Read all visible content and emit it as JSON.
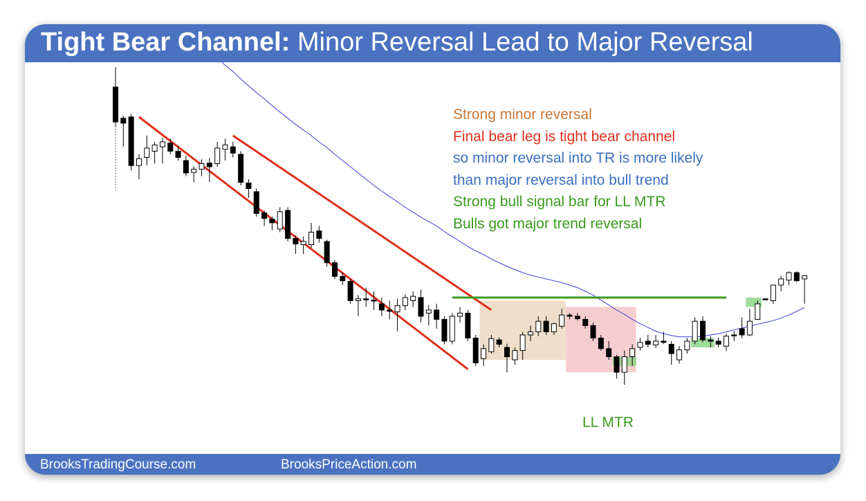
{
  "header": {
    "title_bold": "Tight Bear Channel:",
    "title_rest": " Minor Reversal Lead to Major Reversal",
    "color": "#4a72c0"
  },
  "footer": {
    "left": "BrooksTradingCourse.com",
    "right": "BrooksPriceAction.com"
  },
  "chart_data": {
    "type": "candlestick",
    "title": "",
    "xlabel": "",
    "ylabel": "",
    "grid": false,
    "candles": [
      {
        "o": 508,
        "h": 540,
        "l": 445,
        "c": 452
      },
      {
        "o": 458,
        "h": 462,
        "l": 412,
        "c": 450
      },
      {
        "o": 460,
        "h": 465,
        "l": 374,
        "c": 382
      },
      {
        "o": 382,
        "h": 400,
        "l": 360,
        "c": 393
      },
      {
        "o": 395,
        "h": 430,
        "l": 382,
        "c": 410
      },
      {
        "o": 405,
        "h": 420,
        "l": 385,
        "c": 415
      },
      {
        "o": 412,
        "h": 427,
        "l": 385,
        "c": 420
      },
      {
        "o": 418,
        "h": 425,
        "l": 400,
        "c": 405
      },
      {
        "o": 405,
        "h": 414,
        "l": 390,
        "c": 395
      },
      {
        "o": 390,
        "h": 398,
        "l": 365,
        "c": 370
      },
      {
        "o": 371,
        "h": 380,
        "l": 355,
        "c": 376
      },
      {
        "o": 376,
        "h": 392,
        "l": 365,
        "c": 385
      },
      {
        "o": 386,
        "h": 394,
        "l": 355,
        "c": 380
      },
      {
        "o": 385,
        "h": 420,
        "l": 380,
        "c": 410
      },
      {
        "o": 408,
        "h": 425,
        "l": 390,
        "c": 415
      },
      {
        "o": 412,
        "h": 420,
        "l": 395,
        "c": 402
      },
      {
        "o": 400,
        "h": 405,
        "l": 350,
        "c": 355
      },
      {
        "o": 354,
        "h": 360,
        "l": 330,
        "c": 345
      },
      {
        "o": 340,
        "h": 345,
        "l": 300,
        "c": 305
      },
      {
        "o": 306,
        "h": 310,
        "l": 285,
        "c": 297
      },
      {
        "o": 296,
        "h": 300,
        "l": 278,
        "c": 290
      },
      {
        "o": 280,
        "h": 315,
        "l": 275,
        "c": 308
      },
      {
        "o": 310,
        "h": 315,
        "l": 260,
        "c": 265
      },
      {
        "o": 265,
        "h": 270,
        "l": 240,
        "c": 256
      },
      {
        "o": 255,
        "h": 268,
        "l": 240,
        "c": 260
      },
      {
        "o": 255,
        "h": 290,
        "l": 250,
        "c": 275
      },
      {
        "o": 277,
        "h": 285,
        "l": 258,
        "c": 265
      },
      {
        "o": 260,
        "h": 263,
        "l": 220,
        "c": 226
      },
      {
        "o": 226,
        "h": 230,
        "l": 200,
        "c": 204
      },
      {
        "o": 204,
        "h": 210,
        "l": 190,
        "c": 197
      },
      {
        "o": 196,
        "h": 200,
        "l": 160,
        "c": 165
      },
      {
        "o": 165,
        "h": 174,
        "l": 140,
        "c": 168
      },
      {
        "o": 168,
        "h": 186,
        "l": 155,
        "c": 168
      },
      {
        "o": 166,
        "h": 180,
        "l": 150,
        "c": 165
      },
      {
        "o": 160,
        "h": 170,
        "l": 140,
        "c": 150
      },
      {
        "o": 150,
        "h": 165,
        "l": 135,
        "c": 148
      },
      {
        "o": 147,
        "h": 168,
        "l": 116,
        "c": 157
      },
      {
        "o": 157,
        "h": 175,
        "l": 150,
        "c": 170
      },
      {
        "o": 165,
        "h": 180,
        "l": 155,
        "c": 172
      },
      {
        "o": 170,
        "h": 183,
        "l": 130,
        "c": 140
      },
      {
        "o": 145,
        "h": 158,
        "l": 125,
        "c": 150
      },
      {
        "o": 150,
        "h": 160,
        "l": 120,
        "c": 135
      },
      {
        "o": 135,
        "h": 140,
        "l": 95,
        "c": 100
      },
      {
        "o": 100,
        "h": 145,
        "l": 95,
        "c": 140
      },
      {
        "o": 140,
        "h": 155,
        "l": 130,
        "c": 145
      },
      {
        "o": 145,
        "h": 150,
        "l": 100,
        "c": 105
      },
      {
        "o": 105,
        "h": 110,
        "l": 60,
        "c": 65
      },
      {
        "o": 72,
        "h": 95,
        "l": 60,
        "c": 88
      },
      {
        "o": 83,
        "h": 110,
        "l": 80,
        "c": 104
      },
      {
        "o": 102,
        "h": 106,
        "l": 90,
        "c": 95
      },
      {
        "o": 90,
        "h": 96,
        "l": 50,
        "c": 75
      },
      {
        "o": 70,
        "h": 90,
        "l": 62,
        "c": 85
      },
      {
        "o": 85,
        "h": 115,
        "l": 70,
        "c": 110
      },
      {
        "o": 110,
        "h": 125,
        "l": 100,
        "c": 115
      },
      {
        "o": 115,
        "h": 140,
        "l": 108,
        "c": 132
      },
      {
        "o": 132,
        "h": 140,
        "l": 110,
        "c": 115
      },
      {
        "o": 115,
        "h": 130,
        "l": 110,
        "c": 128
      },
      {
        "o": 124,
        "h": 152,
        "l": 120,
        "c": 142
      },
      {
        "o": 142,
        "h": 145,
        "l": 135,
        "c": 140
      },
      {
        "o": 140,
        "h": 145,
        "l": 133,
        "c": 136
      },
      {
        "o": 135,
        "h": 140,
        "l": 120,
        "c": 125
      },
      {
        "o": 125,
        "h": 130,
        "l": 100,
        "c": 105
      },
      {
        "o": 105,
        "h": 110,
        "l": 85,
        "c": 88
      },
      {
        "o": 88,
        "h": 100,
        "l": 70,
        "c": 75
      },
      {
        "o": 75,
        "h": 78,
        "l": 40,
        "c": 50
      },
      {
        "o": 50,
        "h": 85,
        "l": 30,
        "c": 75
      },
      {
        "o": 75,
        "h": 95,
        "l": 60,
        "c": 88
      },
      {
        "o": 90,
        "h": 105,
        "l": 85,
        "c": 98
      },
      {
        "o": 100,
        "h": 110,
        "l": 90,
        "c": 95
      },
      {
        "o": 94,
        "h": 110,
        "l": 89,
        "c": 100
      },
      {
        "o": 100,
        "h": 115,
        "l": 95,
        "c": 98
      },
      {
        "o": 95,
        "h": 100,
        "l": 62,
        "c": 80
      },
      {
        "o": 70,
        "h": 92,
        "l": 64,
        "c": 86
      },
      {
        "o": 86,
        "h": 105,
        "l": 80,
        "c": 100
      },
      {
        "o": 100,
        "h": 138,
        "l": 95,
        "c": 132
      },
      {
        "o": 132,
        "h": 140,
        "l": 98,
        "c": 102
      },
      {
        "o": 102,
        "h": 108,
        "l": 90,
        "c": 100
      },
      {
        "o": 100,
        "h": 106,
        "l": 90,
        "c": 95
      },
      {
        "o": 92,
        "h": 112,
        "l": 84,
        "c": 108
      },
      {
        "o": 110,
        "h": 116,
        "l": 100,
        "c": 110
      },
      {
        "o": 120,
        "h": 138,
        "l": 105,
        "c": 110
      },
      {
        "o": 110,
        "h": 152,
        "l": 108,
        "c": 132
      },
      {
        "o": 135,
        "h": 165,
        "l": 134,
        "c": 160
      },
      {
        "o": 168,
        "h": 168,
        "l": 168,
        "c": 168
      },
      {
        "o": 165,
        "h": 185,
        "l": 160,
        "c": 190
      },
      {
        "o": 190,
        "h": 205,
        "l": 180,
        "c": 200
      },
      {
        "o": 198,
        "h": 212,
        "l": 190,
        "c": 210
      },
      {
        "o": 210,
        "h": 212,
        "l": 195,
        "c": 197
      },
      {
        "o": 200,
        "h": 205,
        "l": 160,
        "c": 205
      }
    ],
    "moving_average": [
      725,
      706,
      690,
      676,
      663,
      651,
      639,
      627,
      615,
      604,
      592,
      580,
      567,
      555,
      543,
      533,
      521,
      510,
      499,
      489,
      478,
      468,
      458,
      448,
      439,
      430,
      420,
      411,
      400,
      390,
      380,
      370,
      360,
      350,
      341,
      332,
      324,
      315,
      307,
      299,
      292,
      285,
      276,
      268,
      260,
      252,
      245,
      239,
      232,
      226,
      220,
      215,
      210,
      206,
      203,
      200,
      197,
      194,
      190,
      186,
      180,
      174,
      166,
      158,
      150,
      143,
      135,
      128,
      122,
      116,
      112,
      109,
      107,
      107,
      107,
      108,
      110,
      112,
      115,
      118,
      121,
      124,
      127,
      130,
      133,
      137,
      142,
      148,
      154
    ],
    "channel_lines": [
      {
        "from": [
          3,
          460
        ],
        "to": [
          45,
          55
        ],
        "color": "#e0301e"
      },
      {
        "from": [
          15,
          430
        ],
        "to": [
          48,
          150
        ],
        "color": "#e0301e"
      }
    ],
    "horizontal_line": {
      "from_bar": 43,
      "to_bar": 78,
      "y": 170,
      "color": "#3a9a1e"
    },
    "zones": [
      {
        "name": "tan",
        "from_bar": 47,
        "to_bar": 57,
        "y_top": 165,
        "y_bottom": 70,
        "color": "#ecd9c1"
      },
      {
        "name": "pink",
        "from_bar": 58,
        "to_bar": 66,
        "y_top": 155,
        "y_bottom": 50,
        "color": "#f6c6c8"
      }
    ],
    "green_boxes": [
      {
        "from_bar": 64,
        "to_bar": 66,
        "y_top": 75,
        "y_bottom": 60
      },
      {
        "from_bar": 74,
        "to_bar": 76,
        "y_top": 105,
        "y_bottom": 90
      },
      {
        "from_bar": 81,
        "to_bar": 82,
        "y_top": 170,
        "y_bottom": 155
      }
    ],
    "annotations": [
      {
        "text": "Strong minor reversal",
        "color": "#c4763a"
      },
      {
        "text": "Final bear leg is tight bear channel",
        "color": "#e0301e"
      },
      {
        "text": "so minor reversal into TR is more likely",
        "color": "#3a6fc0"
      },
      {
        "text": "than major reversal into bull trend",
        "color": "#3a6fc0"
      },
      {
        "text": "Strong bull signal bar for LL MTR",
        "color": "#3a9a1e"
      },
      {
        "text": "Bulls got major trend reversal",
        "color": "#3a9a1e"
      }
    ],
    "bar_label": {
      "text": "LL MTR",
      "color": "#3a9a1e"
    }
  }
}
